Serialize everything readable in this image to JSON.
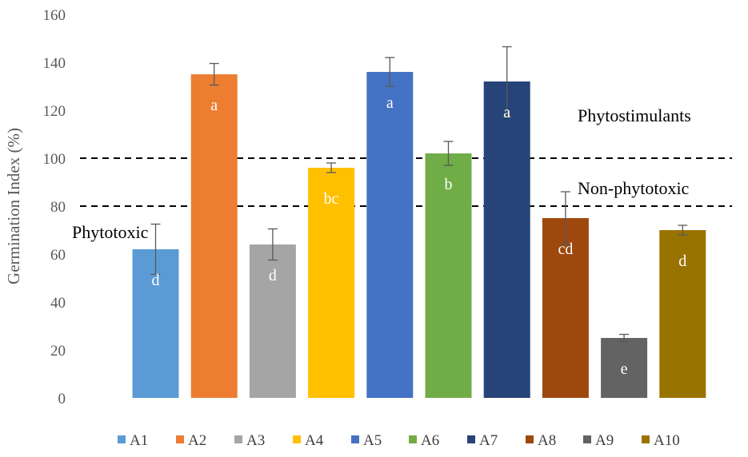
{
  "chart_data": {
    "type": "bar",
    "title": "",
    "xlabel": "",
    "ylabel": "Germination Index (%)",
    "ylim": [
      0,
      160
    ],
    "yticks": [
      0,
      20,
      40,
      60,
      80,
      100,
      120,
      140,
      160
    ],
    "grid": false,
    "legend": "bottom",
    "categories": [
      "A1",
      "A2",
      "A3",
      "A4",
      "A5",
      "A6",
      "A7",
      "A8",
      "A9",
      "A10"
    ],
    "values": [
      62,
      135,
      64,
      96,
      136,
      102,
      132,
      75,
      25,
      70
    ],
    "errors": [
      10.5,
      4.5,
      6.5,
      2,
      6,
      5,
      14.5,
      11,
      1.5,
      2
    ],
    "significance_labels": [
      "d",
      "a",
      "d",
      "bc",
      "a",
      "b",
      "a",
      "cd",
      "e",
      "d"
    ],
    "colors": [
      "#5b9bd5",
      "#ed7d31",
      "#a5a5a5",
      "#ffc000",
      "#4472c4",
      "#70ad47",
      "#264478",
      "#9e480e",
      "#636363",
      "#997300"
    ],
    "thresholds": [
      {
        "value": 100,
        "label": "Phytostimulants"
      },
      {
        "value": 80,
        "label": "Non-phytotoxic"
      }
    ],
    "region_labels": [
      "Phytotoxic"
    ]
  }
}
